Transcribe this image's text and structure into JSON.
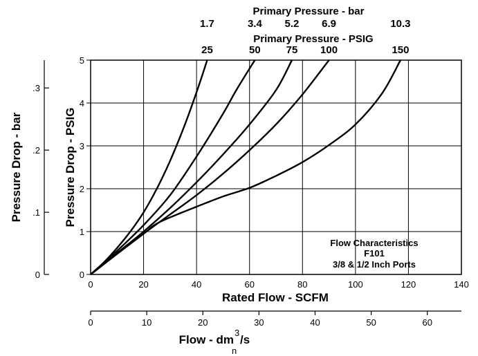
{
  "chart_data": {
    "type": "line",
    "title": "Flow Characteristics",
    "subtitle": [
      "F101",
      "3/8 & 1/2 Inch Ports"
    ],
    "xlabel": "Rated Flow - SCFM",
    "ylabel": "Pressure Drop - PSIG",
    "xlim": [
      0,
      140
    ],
    "ylim": [
      0,
      5
    ],
    "x_ticks": [
      0,
      20,
      40,
      60,
      80,
      100,
      120,
      140
    ],
    "y_ticks": [
      0,
      1,
      2,
      3,
      4,
      5
    ],
    "grid": true,
    "secondary_y": {
      "label": "Pressure Drop - bar",
      "ticks": [
        {
          "label": "0",
          "value": 0
        },
        {
          "label": ".1",
          "value": 0.1
        },
        {
          "label": ".2",
          "value": 0.2
        },
        {
          "label": ".3",
          "value": 0.3
        }
      ]
    },
    "secondary_x": {
      "label": "Flow - dm",
      "label_superscript": "3",
      "label_tail": "/s",
      "label_subscript": "n",
      "ticks": [
        {
          "label": "0",
          "value": 0
        },
        {
          "label": "10",
          "value": 10
        },
        {
          "label": "20",
          "value": 20
        },
        {
          "label": "30",
          "value": 30
        },
        {
          "label": "40",
          "value": 40
        },
        {
          "label": "50",
          "value": 50
        },
        {
          "label": "60",
          "value": 60
        }
      ]
    },
    "top_axis_bar": {
      "label": "Primary Pressure - bar",
      "ticks": [
        "1.7",
        "3.4",
        "5.2",
        "6.9",
        "10.3"
      ]
    },
    "top_axis_psig": {
      "label": "Primary Pressure - PSIG",
      "ticks": [
        "25",
        "50",
        "75",
        "100",
        "150"
      ]
    },
    "series": [
      {
        "primary_psig": 25,
        "primary_bar": 1.7,
        "x": [
          0,
          5,
          10,
          15,
          20,
          25,
          30,
          35,
          40,
          44
        ],
        "y": [
          0,
          0.28,
          0.62,
          1.0,
          1.45,
          2.0,
          2.65,
          3.4,
          4.25,
          5.0
        ]
      },
      {
        "primary_psig": 50,
        "primary_bar": 3.4,
        "x": [
          0,
          10,
          20,
          30,
          40,
          50,
          55,
          62
        ],
        "y": [
          0,
          0.55,
          1.15,
          1.85,
          2.75,
          3.75,
          4.3,
          5.0
        ]
      },
      {
        "primary_psig": 75,
        "primary_bar": 5.2,
        "x": [
          0,
          10,
          20,
          30,
          40,
          50,
          60,
          70,
          76
        ],
        "y": [
          0,
          0.5,
          1.0,
          1.55,
          2.15,
          2.8,
          3.5,
          4.3,
          5.0
        ]
      },
      {
        "primary_psig": 100,
        "primary_bar": 6.9,
        "x": [
          0,
          10,
          20,
          30,
          40,
          50,
          60,
          70,
          80,
          90
        ],
        "y": [
          0,
          0.48,
          0.95,
          1.4,
          1.85,
          2.35,
          2.9,
          3.5,
          4.2,
          5.0
        ]
      },
      {
        "primary_psig": 150,
        "primary_bar": 10.3,
        "x": [
          0,
          10,
          20,
          26,
          40,
          50,
          60,
          70,
          80,
          90,
          100,
          110,
          117
        ],
        "y": [
          0,
          0.48,
          0.95,
          1.22,
          1.58,
          1.82,
          2.02,
          2.3,
          2.62,
          3.02,
          3.5,
          4.22,
          5.0
        ]
      }
    ]
  }
}
